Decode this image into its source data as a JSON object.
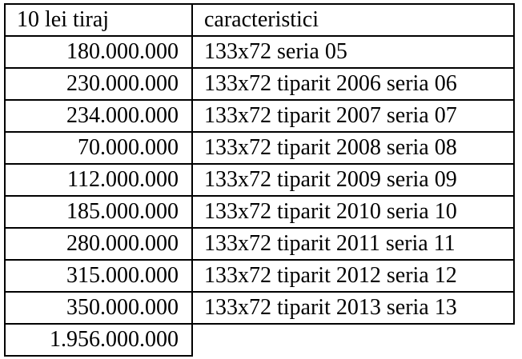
{
  "table": {
    "header": [
      "10 lei tiraj",
      "caracteristici"
    ],
    "rows": [
      [
        "180.000.000",
        "133x72 seria 05"
      ],
      [
        "230.000.000",
        "133x72 tiparit 2006 seria 06"
      ],
      [
        "234.000.000",
        "133x72 tiparit 2007 seria 07"
      ],
      [
        "70.000.000",
        "133x72 tiparit 2008 seria 08"
      ],
      [
        "112.000.000",
        "133x72 tiparit 2009 seria 09"
      ],
      [
        "185.000.000",
        "133x72 tiparit 2010 seria 10"
      ],
      [
        "280.000.000",
        "133x72 tiparit 2011 seria 11"
      ],
      [
        "315.000.000",
        "133x72 tiparit 2012 seria 12"
      ],
      [
        "350.000.000",
        "133x72 tiparit 2013 seria 13"
      ]
    ],
    "total": "1.956.000.000"
  }
}
